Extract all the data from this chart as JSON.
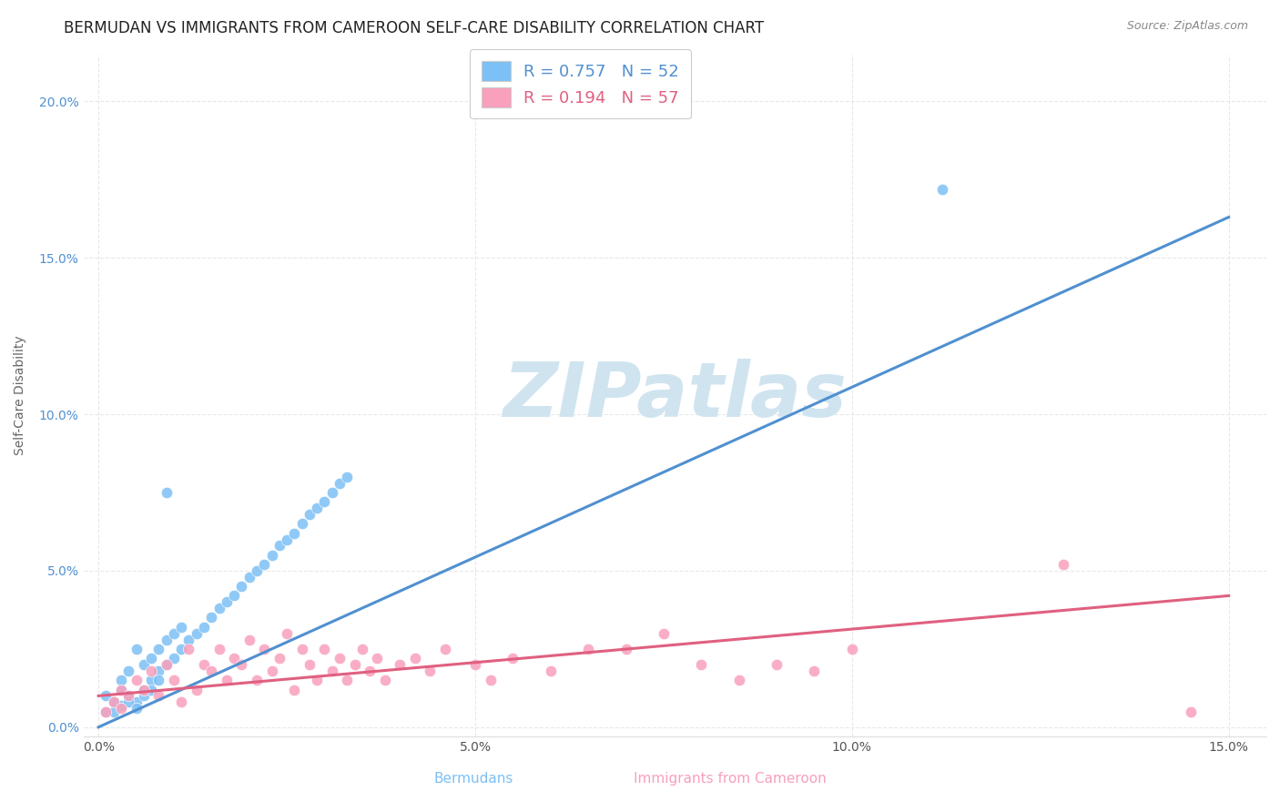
{
  "title": "BERMUDAN VS IMMIGRANTS FROM CAMEROON SELF-CARE DISABILITY CORRELATION CHART",
  "source": "Source: ZipAtlas.com",
  "xlabel_bermuda": "Bermudans",
  "xlabel_cameroon": "Immigrants from Cameroon",
  "ylabel": "Self-Care Disability",
  "xlim": [
    -0.002,
    0.155
  ],
  "ylim": [
    -0.003,
    0.215
  ],
  "xtick_labels": [
    "0.0%",
    "5.0%",
    "10.0%",
    "15.0%"
  ],
  "xtick_vals": [
    0.0,
    0.05,
    0.1,
    0.15
  ],
  "ytick_labels": [
    "0.0%",
    "5.0%",
    "10.0%",
    "15.0%",
    "20.0%"
  ],
  "ytick_vals": [
    0.0,
    0.05,
    0.1,
    0.15,
    0.2
  ],
  "bermuda_R": 0.757,
  "bermuda_N": 52,
  "cameroon_R": 0.194,
  "cameroon_N": 57,
  "bermuda_color": "#7dc0f5",
  "cameroon_color": "#f8a0bc",
  "bermuda_line_color": "#5090d0",
  "cameroon_line_color": "#e06080",
  "watermark_color": "#d0e4f0",
  "bg_color": "#ffffff",
  "grid_color": "#e8e8e8",
  "title_fontsize": 12,
  "axis_fontsize": 10,
  "tick_fontsize": 10,
  "legend_fontsize": 13,
  "bermuda_scatter_x": [
    0.001,
    0.002,
    0.003,
    0.003,
    0.004,
    0.004,
    0.005,
    0.005,
    0.006,
    0.006,
    0.007,
    0.007,
    0.008,
    0.008,
    0.009,
    0.009,
    0.01,
    0.01,
    0.011,
    0.011,
    0.012,
    0.013,
    0.014,
    0.015,
    0.016,
    0.017,
    0.018,
    0.019,
    0.02,
    0.021,
    0.022,
    0.023,
    0.024,
    0.025,
    0.026,
    0.027,
    0.028,
    0.029,
    0.03,
    0.031,
    0.032,
    0.033,
    0.001,
    0.002,
    0.003,
    0.004,
    0.005,
    0.006,
    0.007,
    0.008,
    0.112,
    0.009
  ],
  "bermuda_scatter_y": [
    0.01,
    0.008,
    0.012,
    0.015,
    0.01,
    0.018,
    0.008,
    0.025,
    0.012,
    0.02,
    0.015,
    0.022,
    0.018,
    0.025,
    0.02,
    0.028,
    0.022,
    0.03,
    0.025,
    0.032,
    0.028,
    0.03,
    0.032,
    0.035,
    0.038,
    0.04,
    0.042,
    0.045,
    0.048,
    0.05,
    0.052,
    0.055,
    0.058,
    0.06,
    0.062,
    0.065,
    0.068,
    0.07,
    0.072,
    0.075,
    0.078,
    0.08,
    0.005,
    0.005,
    0.007,
    0.008,
    0.006,
    0.01,
    0.012,
    0.015,
    0.172,
    0.075
  ],
  "cameroon_scatter_x": [
    0.001,
    0.002,
    0.003,
    0.003,
    0.004,
    0.005,
    0.006,
    0.007,
    0.008,
    0.009,
    0.01,
    0.011,
    0.012,
    0.013,
    0.014,
    0.015,
    0.016,
    0.017,
    0.018,
    0.019,
    0.02,
    0.021,
    0.022,
    0.023,
    0.024,
    0.025,
    0.026,
    0.027,
    0.028,
    0.029,
    0.03,
    0.031,
    0.032,
    0.033,
    0.034,
    0.035,
    0.036,
    0.037,
    0.038,
    0.04,
    0.042,
    0.044,
    0.046,
    0.05,
    0.052,
    0.055,
    0.06,
    0.065,
    0.07,
    0.075,
    0.08,
    0.085,
    0.09,
    0.095,
    0.1,
    0.128,
    0.145
  ],
  "cameroon_scatter_y": [
    0.005,
    0.008,
    0.006,
    0.012,
    0.01,
    0.015,
    0.012,
    0.018,
    0.01,
    0.02,
    0.015,
    0.008,
    0.025,
    0.012,
    0.02,
    0.018,
    0.025,
    0.015,
    0.022,
    0.02,
    0.028,
    0.015,
    0.025,
    0.018,
    0.022,
    0.03,
    0.012,
    0.025,
    0.02,
    0.015,
    0.025,
    0.018,
    0.022,
    0.015,
    0.02,
    0.025,
    0.018,
    0.022,
    0.015,
    0.02,
    0.022,
    0.018,
    0.025,
    0.02,
    0.015,
    0.022,
    0.018,
    0.025,
    0.025,
    0.03,
    0.02,
    0.015,
    0.02,
    0.018,
    0.025,
    0.052,
    0.005
  ],
  "bermuda_trend_x": [
    0.0,
    0.15
  ],
  "bermuda_trend_y": [
    0.0,
    0.163
  ],
  "cameroon_trend_x": [
    0.0,
    0.15
  ],
  "cameroon_trend_y": [
    0.01,
    0.042
  ]
}
